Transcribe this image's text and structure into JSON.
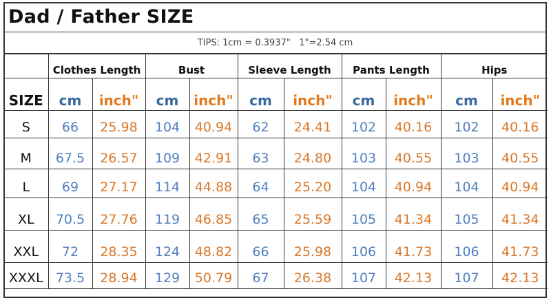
{
  "title": "Dad / Father  SIZE",
  "tips": "TIPS: 1cm = 0.3937\"   1\"=2.54 cm",
  "size_label": "SIZE",
  "groups": [
    "Clothes Length",
    "Bust",
    "Sleeve Length",
    "Pants Length",
    "Hips"
  ],
  "units": {
    "cm": "cm",
    "inch": "inch\""
  },
  "colors": {
    "cm": "#3b6aa0",
    "inch": "#e07b1f"
  },
  "rows": [
    {
      "size": "S",
      "values": [
        "66",
        "25.98",
        "104",
        "40.94",
        "62",
        "24.41",
        "102",
        "40.16",
        "102",
        "40.16"
      ]
    },
    {
      "size": "M",
      "values": [
        "67.5",
        "26.57",
        "109",
        "42.91",
        "63",
        "24.80",
        "103",
        "40.55",
        "103",
        "40.55"
      ]
    },
    {
      "size": "L",
      "values": [
        "69",
        "27.17",
        "114",
        "44.88",
        "64",
        "25.20",
        "104",
        "40.94",
        "104",
        "40.94"
      ]
    },
    {
      "size": "XL",
      "values": [
        "70.5",
        "27.76",
        "119",
        "46.85",
        "65",
        "25.59",
        "105",
        "41.34",
        "105",
        "41.34"
      ]
    },
    {
      "size": "XXL",
      "values": [
        "72",
        "28.35",
        "124",
        "48.82",
        "66",
        "25.98",
        "106",
        "41.73",
        "106",
        "41.73"
      ]
    },
    {
      "size": "XXXL",
      "values": [
        "73.5",
        "28.94",
        "129",
        "50.79",
        "67",
        "26.38",
        "107",
        "42.13",
        "107",
        "42.13"
      ]
    }
  ]
}
